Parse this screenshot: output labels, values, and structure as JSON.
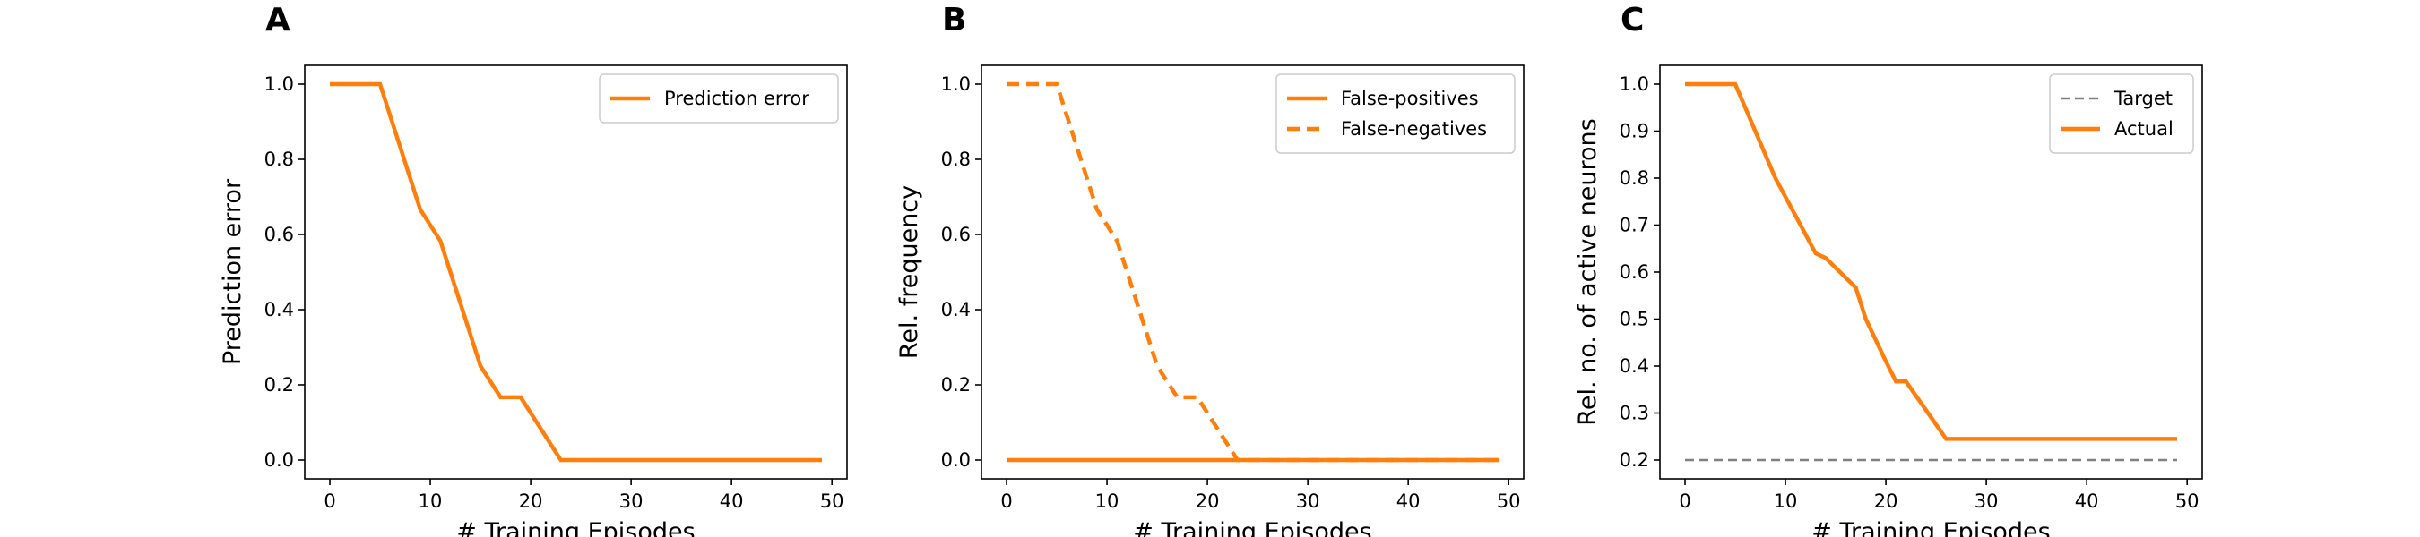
{
  "colors": {
    "orange": "#ff7f0e",
    "gray": "#808080",
    "frame": "#000000",
    "legend_border": "#cccccc"
  },
  "chart_data": [
    {
      "panel": "A",
      "type": "line",
      "xlabel": "# Training Episodes",
      "ylabel": "Prediction error",
      "xlim": [
        -2.5,
        51.5
      ],
      "ylim": [
        -0.05,
        1.05
      ],
      "xticks": [
        0,
        10,
        20,
        30,
        40,
        50
      ],
      "yticks": [
        0.0,
        0.2,
        0.4,
        0.6,
        0.8,
        1.0
      ],
      "ytick_labels": [
        "0.0",
        "0.2",
        "0.4",
        "0.6",
        "0.8",
        "1.0"
      ],
      "legend_position": "top-right",
      "series": [
        {
          "name": "Prediction error",
          "style": "solid",
          "color": "#ff7f0e",
          "x": [
            0,
            5,
            9,
            11,
            15,
            17,
            19,
            23,
            49
          ],
          "y": [
            1.0,
            1.0,
            0.667,
            0.583,
            0.25,
            0.167,
            0.167,
            0.0,
            0.0
          ]
        }
      ]
    },
    {
      "panel": "B",
      "type": "line",
      "xlabel": "# Training Episodes",
      "ylabel": "Rel. frequency",
      "xlim": [
        -2.5,
        51.5
      ],
      "ylim": [
        -0.05,
        1.05
      ],
      "xticks": [
        0,
        10,
        20,
        30,
        40,
        50
      ],
      "yticks": [
        0.0,
        0.2,
        0.4,
        0.6,
        0.8,
        1.0
      ],
      "ytick_labels": [
        "0.0",
        "0.2",
        "0.4",
        "0.6",
        "0.8",
        "1.0"
      ],
      "legend_position": "top-right",
      "series": [
        {
          "name": "False-positives",
          "style": "solid",
          "color": "#ff7f0e",
          "x": [
            0,
            49
          ],
          "y": [
            0.0,
            0.0
          ]
        },
        {
          "name": "False-negatives",
          "style": "dashed",
          "color": "#ff7f0e",
          "x": [
            0,
            5,
            9,
            11,
            15,
            17,
            19,
            23,
            49
          ],
          "y": [
            1.0,
            1.0,
            0.667,
            0.583,
            0.25,
            0.167,
            0.167,
            0.0,
            0.0
          ]
        }
      ]
    },
    {
      "panel": "C",
      "type": "line",
      "xlabel": "# Training Episodes",
      "ylabel": "Rel. no. of active neurons",
      "xlim": [
        -2.5,
        51.5
      ],
      "ylim": [
        0.16,
        1.04
      ],
      "xticks": [
        0,
        10,
        20,
        30,
        40,
        50
      ],
      "yticks": [
        0.2,
        0.3,
        0.4,
        0.5,
        0.6,
        0.7,
        0.8,
        0.9,
        1.0
      ],
      "ytick_labels": [
        "0.2",
        "0.3",
        "0.4",
        "0.5",
        "0.6",
        "0.7",
        "0.8",
        "0.9",
        "1.0"
      ],
      "legend_position": "top-right",
      "series": [
        {
          "name": "Target",
          "style": "dashed-thin",
          "color": "#808080",
          "x": [
            0,
            49
          ],
          "y": [
            0.2,
            0.2
          ]
        },
        {
          "name": "Actual",
          "style": "solid",
          "color": "#ff7f0e",
          "x": [
            0,
            5,
            7,
            9,
            11,
            13,
            14,
            17,
            18,
            20,
            21,
            22,
            26,
            49
          ],
          "y": [
            1.0,
            1.0,
            0.9,
            0.8,
            0.72,
            0.64,
            0.63,
            0.567,
            0.5,
            0.41,
            0.367,
            0.367,
            0.245,
            0.245
          ]
        }
      ]
    }
  ]
}
